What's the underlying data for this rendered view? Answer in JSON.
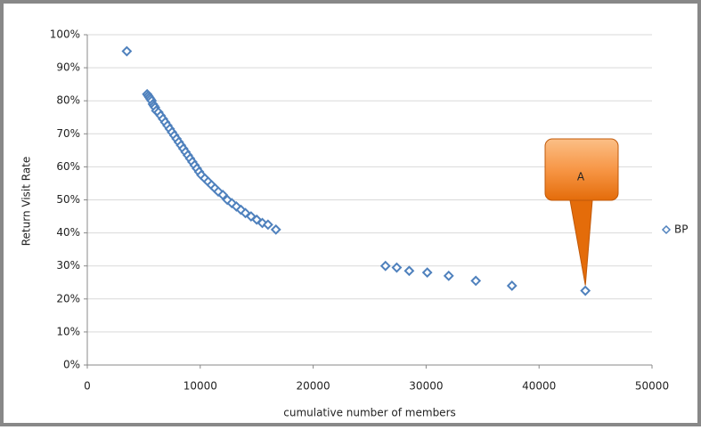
{
  "chart_data": {
    "type": "scatter",
    "y_label": "Return Visit Rate",
    "x_label": "cumulative  number  of members",
    "xlim": [
      0,
      50000
    ],
    "xticks": [
      0,
      10000,
      20000,
      30000,
      40000,
      50000
    ],
    "ylim": [
      0,
      100
    ],
    "yticks": [
      {
        "value": 0,
        "label": "0%"
      },
      {
        "value": 10,
        "label": "10%"
      },
      {
        "value": 20,
        "label": "20%"
      },
      {
        "value": 30,
        "label": "30%"
      },
      {
        "value": 40,
        "label": "40%"
      },
      {
        "value": 50,
        "label": "50%"
      },
      {
        "value": 60,
        "label": "60%"
      },
      {
        "value": 70,
        "label": "70%"
      },
      {
        "value": 80,
        "label": "80%"
      },
      {
        "value": 90,
        "label": "90%"
      },
      {
        "value": 100,
        "label": "100%"
      }
    ],
    "grid": true,
    "legend": "right",
    "annotations": [
      {
        "text": "A"
      }
    ],
    "series": [
      {
        "name": "BP",
        "color": "#4f81bd",
        "x": [
          3500,
          5300,
          5400,
          5500,
          5600,
          5700,
          5800,
          5900,
          6000,
          6100,
          6300,
          6500,
          6700,
          6900,
          7100,
          7300,
          7500,
          7700,
          7900,
          8100,
          8300,
          8500,
          8700,
          8900,
          9100,
          9300,
          9500,
          9700,
          9900,
          10100,
          10400,
          10700,
          11000,
          11300,
          11600,
          12000,
          12400,
          12800,
          13200,
          13600,
          14000,
          14500,
          15000,
          15500,
          16000,
          16700,
          26400,
          27400,
          28500,
          30100,
          32000,
          34400,
          37600,
          44100
        ],
        "values": [
          95,
          82,
          81.5,
          81,
          80.5,
          80,
          79,
          78.5,
          78,
          77,
          76.5,
          75.5,
          74.5,
          73.5,
          72.5,
          71.5,
          70.5,
          69.5,
          68.5,
          67.5,
          66.5,
          65.5,
          64.5,
          63.5,
          62.5,
          61.5,
          60.5,
          59.5,
          58.5,
          57.5,
          56.5,
          55.5,
          54.5,
          53.5,
          52.5,
          51.5,
          50,
          49,
          48,
          47,
          46,
          45,
          44,
          43,
          42.5,
          41,
          30,
          29.5,
          28.5,
          28,
          27,
          25.5,
          24,
          22.5
        ]
      }
    ]
  }
}
